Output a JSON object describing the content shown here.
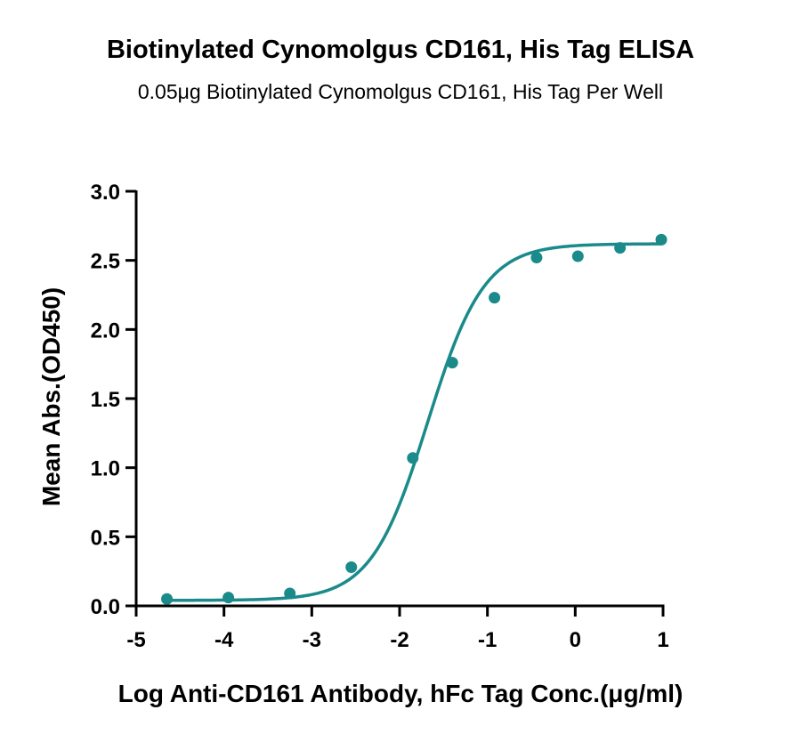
{
  "chart_data": {
    "type": "scatter",
    "title": "Biotinylated Cynomolgus CD161, His Tag ELISA",
    "subtitle": "0.05μg Biotinylated Cynomolgus CD161, His Tag Per Well",
    "xlabel": "Log Anti-CD161 Antibody, hFc Tag Conc.(μg/ml)",
    "ylabel": "Mean Abs.(OD450)",
    "xlim": [
      -5,
      1
    ],
    "ylim": [
      0,
      3.0
    ],
    "x_ticks": [
      "-5",
      "-4",
      "-3",
      "-2",
      "-1",
      "0",
      "1"
    ],
    "y_ticks": [
      "0.0",
      "0.5",
      "1.0",
      "1.5",
      "2.0",
      "2.5",
      "3.0"
    ],
    "grid": false,
    "legend": "none",
    "series": [
      {
        "color": "#1a8a8a",
        "points": [
          {
            "x": -4.65,
            "y": 0.05
          },
          {
            "x": -3.95,
            "y": 0.06
          },
          {
            "x": -3.25,
            "y": 0.09
          },
          {
            "x": -2.55,
            "y": 0.28
          },
          {
            "x": -1.85,
            "y": 1.07
          },
          {
            "x": -1.4,
            "y": 1.76
          },
          {
            "x": -0.92,
            "y": 2.23
          },
          {
            "x": -0.44,
            "y": 2.52
          },
          {
            "x": 0.03,
            "y": 2.53
          },
          {
            "x": 0.51,
            "y": 2.59
          },
          {
            "x": 0.98,
            "y": 2.65
          }
        ],
        "fit": {
          "model": "4PL",
          "bottom": 0.04,
          "top": 2.62,
          "logEC50": -1.68,
          "hill": 1.35
        }
      }
    ]
  }
}
